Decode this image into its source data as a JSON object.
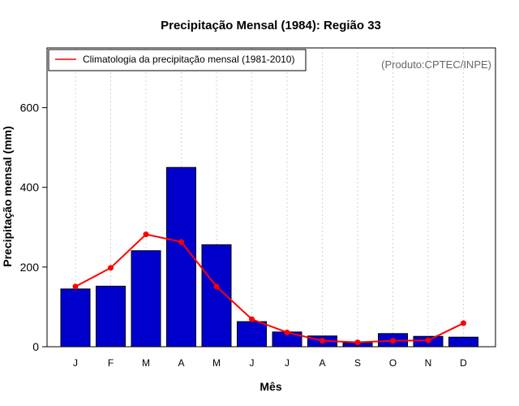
{
  "chart_data": {
    "type": "bar",
    "title": "Precipitação Mensal (1984): Região 33",
    "xlabel": "Mês",
    "ylabel": "Precipitação mensal (mm)",
    "categories": [
      "J",
      "F",
      "M",
      "A",
      "M",
      "J",
      "J",
      "A",
      "S",
      "O",
      "N",
      "D"
    ],
    "ylim": [
      0,
      750
    ],
    "yticks": [
      0,
      200,
      400,
      600
    ],
    "grid": "vertical-dotted",
    "series": [
      {
        "name": "Precipitação mensal (1984)",
        "type": "bar",
        "color": "#0000cd",
        "values": [
          145,
          152,
          241,
          450,
          256,
          63,
          37,
          27,
          10,
          33,
          26,
          24
        ]
      },
      {
        "name": "Climatologia da precipitação mensal (1981-2010)",
        "type": "line",
        "color": "#ff0000",
        "values": [
          151,
          198,
          282,
          263,
          151,
          69,
          36,
          15,
          11,
          15,
          16,
          59
        ]
      }
    ],
    "legend": {
      "position": "top-left",
      "label": "Climatologia da precipitação mensal (1981-2010)"
    },
    "annotation": "(Produto:CPTEC/INPE)"
  }
}
